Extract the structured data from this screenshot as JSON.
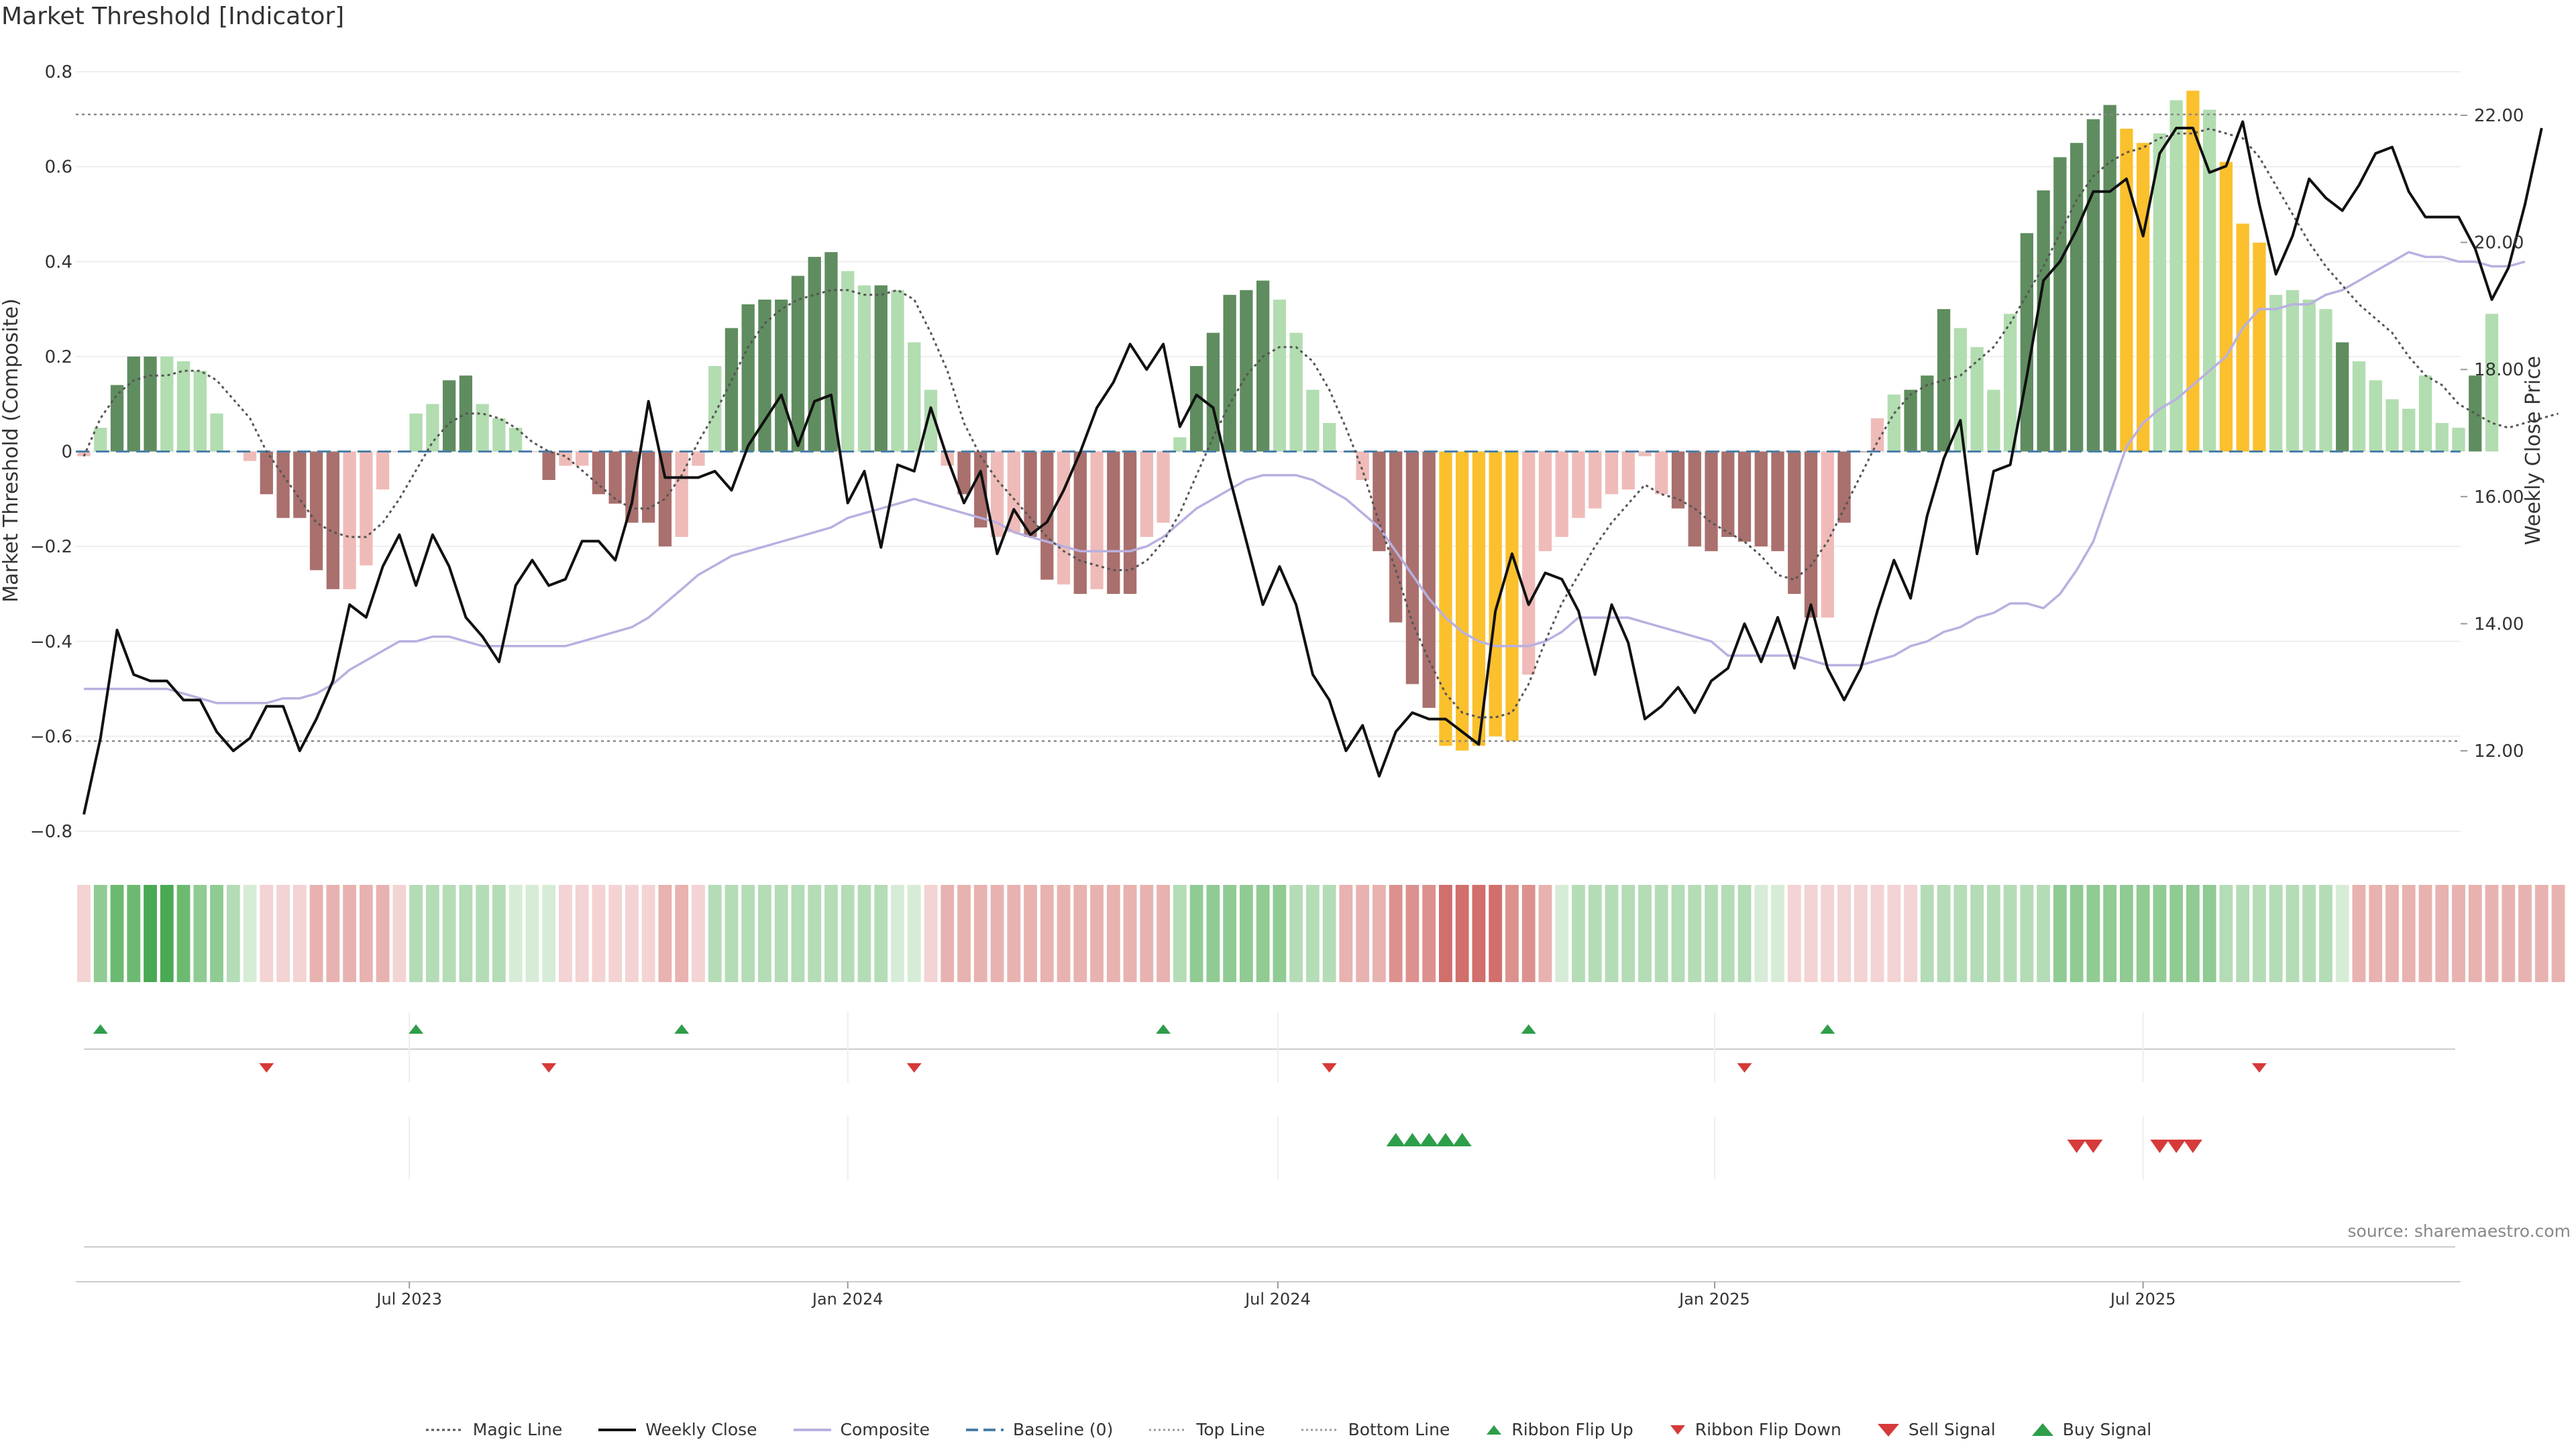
{
  "title": "Market Threshold [Indicator]",
  "source": "source: sharemaestro.com",
  "colors": {
    "bar_up_strong": "#5f8d5f",
    "bar_up_weak": "#b2ddb0",
    "bar_down_strong": "#a9706d",
    "bar_down_weak": "#efbbb8",
    "bar_extreme": "#fbc02d",
    "weekly_close": "#111111",
    "composite": "#b8b0e0",
    "magic": "#555555",
    "baseline": "#4a7fa8",
    "threshold": "#888888",
    "buy": "#2e9e4a",
    "sell": "#d63a3a"
  },
  "chart_data": {
    "type": "bar+line",
    "title": "Market Threshold [Indicator]",
    "ylabel_left": "Market Threshold (Composite)",
    "ylabel_right": "Weekly Close Price",
    "ylim_left": [
      -0.8,
      0.8
    ],
    "yticks_left": [
      "0.8",
      "0.6",
      "0.4",
      "0.2",
      "0",
      "−0.2",
      "−0.4",
      "−0.6",
      "−0.8"
    ],
    "ylim_right": [
      11.0,
      23.0
    ],
    "yticks_right": [
      "22.00",
      "20.00",
      "18.00",
      "16.00",
      "14.00",
      "12.00"
    ],
    "top_line": 0.71,
    "bottom_line": -0.61,
    "baseline": 0,
    "x_start_week": 0,
    "weeks": 144,
    "x_ticks": [
      {
        "label": "Jul 2023",
        "week": 19.6
      },
      {
        "label": "Jan 2024",
        "week": 46.0
      },
      {
        "label": "Jul 2024",
        "week": 71.9
      },
      {
        "label": "Jan 2025",
        "week": 98.2
      },
      {
        "label": "Jul 2025",
        "week": 124.0
      }
    ],
    "bars": [
      -0.01,
      0.05,
      0.14,
      0.2,
      0.2,
      0.2,
      0.19,
      0.17,
      0.08,
      0.0,
      -0.02,
      -0.09,
      -0.14,
      -0.14,
      -0.25,
      -0.29,
      -0.29,
      -0.24,
      -0.08,
      0.0,
      0.08,
      0.1,
      0.15,
      0.16,
      0.1,
      0.07,
      0.05,
      0.0,
      -0.06,
      -0.03,
      -0.03,
      -0.09,
      -0.11,
      -0.15,
      -0.15,
      -0.2,
      -0.18,
      -0.03,
      0.18,
      0.26,
      0.31,
      0.32,
      0.32,
      0.37,
      0.41,
      0.42,
      0.38,
      0.35,
      0.35,
      0.34,
      0.23,
      0.13,
      -0.03,
      -0.09,
      -0.16,
      -0.18,
      -0.17,
      -0.18,
      -0.27,
      -0.28,
      -0.3,
      -0.29,
      -0.3,
      -0.3,
      -0.18,
      -0.15,
      0.03,
      0.18,
      0.25,
      0.33,
      0.34,
      0.36,
      0.32,
      0.25,
      0.13,
      0.06,
      0.0,
      -0.06,
      -0.21,
      -0.36,
      -0.49,
      -0.54,
      -0.62,
      -0.63,
      -0.62,
      -0.6,
      -0.61,
      -0.47,
      -0.21,
      -0.18,
      -0.14,
      -0.12,
      -0.09,
      -0.08,
      -0.01,
      -0.09,
      -0.12,
      -0.2,
      -0.21,
      -0.18,
      -0.19,
      -0.2,
      -0.21,
      -0.3,
      -0.35,
      -0.35,
      -0.15,
      0.0,
      0.07,
      0.12,
      0.13,
      0.16,
      0.3,
      0.26,
      0.22,
      0.13,
      0.29,
      0.46,
      0.55,
      0.62,
      0.65,
      0.7,
      0.73,
      0.68,
      0.65,
      0.67,
      0.74,
      0.76,
      0.72,
      0.61,
      0.48,
      0.44,
      0.33,
      0.34,
      0.32,
      0.3,
      0.23,
      0.19,
      0.15,
      0.11,
      0.09,
      0.16,
      0.06,
      0.05,
      0.16,
      0.29
    ],
    "bar_color_codes": [
      "dw",
      "uw",
      "us",
      "us",
      "us",
      "uw",
      "uw",
      "uw",
      "uw",
      "uw",
      "dw",
      "ds",
      "ds",
      "ds",
      "ds",
      "ds",
      "dw",
      "dw",
      "dw",
      "dw",
      "uw",
      "uw",
      "us",
      "us",
      "uw",
      "uw",
      "uw",
      "dw",
      "ds",
      "dw",
      "dw",
      "ds",
      "ds",
      "ds",
      "ds",
      "ds",
      "dw",
      "dw",
      "uw",
      "us",
      "us",
      "us",
      "us",
      "us",
      "us",
      "us",
      "uw",
      "uw",
      "us",
      "uw",
      "uw",
      "uw",
      "dw",
      "ds",
      "ds",
      "dw",
      "dw",
      "ds",
      "ds",
      "dw",
      "ds",
      "dw",
      "ds",
      "ds",
      "dw",
      "dw",
      "uw",
      "us",
      "us",
      "us",
      "us",
      "us",
      "uw",
      "uw",
      "uw",
      "uw",
      "dw",
      "dw",
      "ds",
      "ds",
      "ds",
      "ds",
      "ex",
      "ex",
      "ex",
      "ex",
      "ex",
      "dw",
      "dw",
      "dw",
      "dw",
      "dw",
      "dw",
      "dw",
      "dw",
      "dw",
      "ds",
      "ds",
      "ds",
      "ds",
      "ds",
      "ds",
      "ds",
      "ds",
      "ds",
      "dw",
      "ds",
      "ds",
      "dw",
      "uw",
      "us",
      "us",
      "us",
      "uw",
      "uw",
      "uw",
      "uw",
      "us",
      "us",
      "us",
      "us",
      "us",
      "us",
      "ex",
      "ex",
      "uw",
      "uw",
      "ex",
      "uw",
      "ex",
      "ex",
      "ex",
      "uw",
      "uw",
      "uw",
      "uw",
      "us",
      "uw",
      "uw",
      "uw",
      "uw",
      "uw",
      "uw",
      "uw",
      "us",
      "uw",
      "uw",
      "uw",
      "us",
      "us"
    ],
    "weekly_close": [
      11.0,
      12.2,
      13.9,
      13.2,
      13.1,
      13.1,
      12.8,
      12.8,
      12.3,
      12.0,
      12.2,
      12.7,
      12.7,
      12.0,
      12.5,
      13.1,
      14.3,
      14.1,
      14.9,
      15.4,
      14.6,
      15.4,
      14.9,
      14.1,
      13.8,
      13.4,
      14.6,
      15.0,
      14.6,
      14.7,
      15.3,
      15.3,
      15.0,
      15.9,
      17.5,
      16.3,
      16.3,
      16.3,
      16.4,
      16.1,
      16.8,
      17.2,
      17.6,
      16.8,
      17.5,
      17.6,
      15.9,
      16.4,
      15.2,
      16.5,
      16.4,
      17.4,
      16.6,
      15.9,
      16.4,
      15.1,
      15.8,
      15.4,
      15.6,
      16.1,
      16.7,
      17.4,
      17.8,
      18.4,
      18.0,
      18.4,
      17.1,
      17.6,
      17.4,
      16.3,
      15.3,
      14.3,
      14.9,
      14.3,
      13.2,
      12.8,
      12.0,
      12.4,
      11.6,
      12.3,
      12.6,
      12.5,
      12.5,
      12.3,
      12.1,
      14.2,
      15.1,
      14.3,
      14.8,
      14.7,
      14.2,
      13.2,
      14.3,
      13.7,
      12.5,
      12.7,
      13.0,
      12.6,
      13.1,
      13.3,
      14.0,
      13.4,
      14.1,
      13.3,
      14.3,
      13.3,
      12.8,
      13.3,
      14.2,
      15.0,
      14.4,
      15.7,
      16.6,
      17.2,
      15.1,
      16.4,
      16.5,
      17.9,
      19.4,
      19.7,
      20.2,
      20.8,
      20.8,
      21.0,
      20.1,
      21.4,
      21.8,
      21.8,
      21.1,
      21.2,
      21.9,
      20.6,
      19.5,
      20.1,
      21.0,
      20.7,
      20.5,
      20.9,
      21.4,
      21.5,
      20.8,
      20.4,
      20.4,
      20.4,
      19.9,
      19.1,
      19.6,
      20.6,
      21.8
    ],
    "composite": [
      -0.5,
      -0.5,
      -0.5,
      -0.5,
      -0.5,
      -0.5,
      -0.51,
      -0.52,
      -0.53,
      -0.53,
      -0.53,
      -0.53,
      -0.52,
      -0.52,
      -0.51,
      -0.49,
      -0.46,
      -0.44,
      -0.42,
      -0.4,
      -0.4,
      -0.39,
      -0.39,
      -0.4,
      -0.41,
      -0.41,
      -0.41,
      -0.41,
      -0.41,
      -0.41,
      -0.4,
      -0.39,
      -0.38,
      -0.37,
      -0.35,
      -0.32,
      -0.29,
      -0.26,
      -0.24,
      -0.22,
      -0.21,
      -0.2,
      -0.19,
      -0.18,
      -0.17,
      -0.16,
      -0.14,
      -0.13,
      -0.12,
      -0.11,
      -0.1,
      -0.11,
      -0.12,
      -0.13,
      -0.14,
      -0.15,
      -0.17,
      -0.18,
      -0.19,
      -0.2,
      -0.21,
      -0.21,
      -0.21,
      -0.21,
      -0.2,
      -0.18,
      -0.15,
      -0.12,
      -0.1,
      -0.08,
      -0.06,
      -0.05,
      -0.05,
      -0.05,
      -0.06,
      -0.08,
      -0.1,
      -0.13,
      -0.16,
      -0.21,
      -0.26,
      -0.31,
      -0.35,
      -0.38,
      -0.4,
      -0.41,
      -0.41,
      -0.41,
      -0.4,
      -0.38,
      -0.35,
      -0.35,
      -0.35,
      -0.35,
      -0.36,
      -0.37,
      -0.38,
      -0.39,
      -0.4,
      -0.43,
      -0.43,
      -0.43,
      -0.43,
      -0.43,
      -0.44,
      -0.45,
      -0.45,
      -0.45,
      -0.44,
      -0.43,
      -0.41,
      -0.4,
      -0.38,
      -0.37,
      -0.35,
      -0.34,
      -0.32,
      -0.32,
      -0.33,
      -0.3,
      -0.25,
      -0.19,
      -0.09,
      0.01,
      0.06,
      0.09,
      0.11,
      0.14,
      0.17,
      0.2,
      0.26,
      0.3,
      0.3,
      0.31,
      0.31,
      0.33,
      0.34,
      0.36,
      0.38,
      0.4,
      0.42,
      0.41,
      0.41,
      0.4,
      0.4,
      0.39,
      0.39,
      0.4
    ],
    "magic": [
      -0.01,
      0.07,
      0.12,
      0.15,
      0.16,
      0.16,
      0.17,
      0.17,
      0.15,
      0.11,
      0.07,
      0.0,
      -0.05,
      -0.1,
      -0.15,
      -0.17,
      -0.18,
      -0.18,
      -0.15,
      -0.1,
      -0.04,
      0.02,
      0.06,
      0.08,
      0.08,
      0.07,
      0.05,
      0.02,
      0.0,
      -0.01,
      -0.04,
      -0.07,
      -0.1,
      -0.12,
      -0.12,
      -0.1,
      -0.05,
      0.02,
      0.08,
      0.15,
      0.22,
      0.27,
      0.3,
      0.32,
      0.33,
      0.34,
      0.34,
      0.33,
      0.33,
      0.34,
      0.32,
      0.25,
      0.17,
      0.06,
      -0.01,
      -0.06,
      -0.1,
      -0.14,
      -0.18,
      -0.21,
      -0.23,
      -0.24,
      -0.25,
      -0.25,
      -0.23,
      -0.19,
      -0.13,
      -0.05,
      0.03,
      0.1,
      0.16,
      0.2,
      0.22,
      0.22,
      0.19,
      0.13,
      0.05,
      -0.04,
      -0.15,
      -0.25,
      -0.36,
      -0.44,
      -0.51,
      -0.55,
      -0.56,
      -0.56,
      -0.55,
      -0.49,
      -0.4,
      -0.32,
      -0.26,
      -0.2,
      -0.15,
      -0.11,
      -0.07,
      -0.09,
      -0.1,
      -0.12,
      -0.15,
      -0.17,
      -0.19,
      -0.22,
      -0.26,
      -0.27,
      -0.24,
      -0.19,
      -0.12,
      -0.05,
      0.02,
      0.08,
      0.12,
      0.14,
      0.15,
      0.16,
      0.19,
      0.22,
      0.27,
      0.33,
      0.39,
      0.46,
      0.53,
      0.58,
      0.61,
      0.63,
      0.64,
      0.66,
      0.67,
      0.67,
      0.68,
      0.67,
      0.66,
      0.62,
      0.56,
      0.5,
      0.44,
      0.39,
      0.35,
      0.31,
      0.28,
      0.25,
      0.2,
      0.16,
      0.14,
      0.1,
      0.08,
      0.06,
      0.05,
      0.06,
      0.07,
      0.08
    ],
    "ribbon_shades": [
      "r1",
      "g3",
      "g4",
      "g4",
      "g5",
      "g5",
      "g4",
      "g3",
      "g3",
      "g2",
      "g1",
      "r1",
      "r1",
      "r1",
      "r2",
      "r2",
      "r2",
      "r2",
      "r2",
      "r1",
      "g2",
      "g2",
      "g2",
      "g2",
      "g2",
      "g2",
      "g1",
      "g1",
      "g1",
      "r1",
      "r1",
      "r1",
      "r1",
      "r1",
      "r1",
      "r2",
      "r2",
      "r1",
      "g2",
      "g2",
      "g2",
      "g2",
      "g2",
      "g2",
      "g2",
      "g2",
      "g2",
      "g2",
      "g2",
      "g1",
      "g1",
      "r1",
      "r2",
      "r2",
      "r2",
      "r2",
      "r2",
      "r2",
      "r2",
      "r2",
      "r2",
      "r2",
      "r2",
      "r2",
      "r2",
      "r2",
      "g2",
      "g3",
      "g3",
      "g3",
      "g3",
      "g3",
      "g3",
      "g2",
      "g2",
      "g2",
      "r2",
      "r2",
      "r2",
      "r3",
      "r3",
      "r3",
      "r4",
      "r4",
      "r4",
      "r4",
      "r3",
      "r3",
      "r2",
      "g1",
      "g2",
      "g2",
      "g2",
      "g2",
      "g2",
      "g2",
      "g2",
      "g2",
      "g2",
      "g2",
      "g2",
      "g1",
      "g1",
      "r1",
      "r1",
      "r1",
      "r1",
      "r1",
      "r1",
      "r1",
      "r1",
      "g2",
      "g2",
      "g2",
      "g2",
      "g2",
      "g2",
      "g2",
      "g2",
      "g3",
      "g3",
      "g3",
      "g3",
      "g3",
      "g3",
      "g3",
      "g3",
      "g3",
      "g3",
      "g2",
      "g2",
      "g2",
      "g2",
      "g2",
      "g2",
      "g2",
      "g1",
      "r2",
      "r2",
      "r2",
      "r2",
      "r2",
      "r2",
      "r2",
      "r2",
      "r2",
      "r2",
      "r2",
      "r2",
      "r2"
    ],
    "ribbon_flip_up_weeks": [
      1.0,
      20.0,
      36.0,
      65.0,
      87.0,
      105.0
    ],
    "ribbon_flip_down_weeks": [
      11.0,
      28.0,
      50.0,
      75.0,
      100.0,
      131.0
    ],
    "buy_signal_weeks": [
      79.0,
      80.0,
      81.0,
      82.0,
      83.0
    ],
    "sell_signal_weeks": [
      120.0,
      121.0,
      125.0,
      126.0,
      127.0
    ],
    "legend": [
      "Magic Line",
      "Weekly Close",
      "Composite",
      "Baseline (0)",
      "Top Line",
      "Bottom Line",
      "Ribbon Flip Up",
      "Ribbon Flip Down",
      "Sell Signal",
      "Buy Signal"
    ]
  }
}
